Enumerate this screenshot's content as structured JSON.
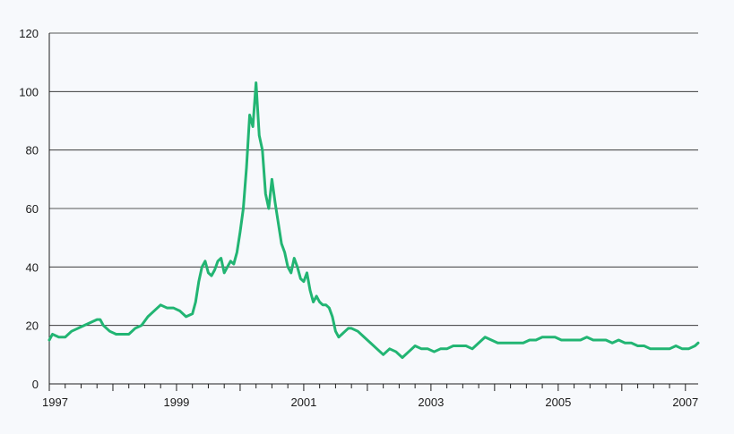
{
  "chart_data": {
    "type": "line",
    "title": "",
    "xlabel": "",
    "ylabel": "",
    "xlim": [
      1996.75,
      2006.95
    ],
    "ylim": [
      0,
      120
    ],
    "grid": "horizontal",
    "y_ticks": [
      0,
      20,
      40,
      60,
      80,
      100,
      120
    ],
    "y_tick_labels": [
      "0",
      "20",
      "40",
      "60",
      "80",
      "100",
      "120"
    ],
    "x_ticks": [
      1996.75,
      1998.75,
      2000.75,
      2002.75,
      2004.75,
      2006.75
    ],
    "x_tick_labels": [
      "1997",
      "1999",
      "2001",
      "2003",
      "2005",
      "2007"
    ],
    "series": [
      {
        "color": "#22b573",
        "x": [
          1996.75,
          1996.8,
          1996.9,
          1997.0,
          1997.1,
          1997.2,
          1997.3,
          1997.4,
          1997.5,
          1997.55,
          1997.6,
          1997.7,
          1997.8,
          1997.9,
          1998.0,
          1998.1,
          1998.2,
          1998.3,
          1998.4,
          1998.5,
          1998.6,
          1998.7,
          1998.8,
          1998.9,
          1999.0,
          1999.05,
          1999.1,
          1999.15,
          1999.2,
          1999.25,
          1999.3,
          1999.35,
          1999.4,
          1999.45,
          1999.5,
          1999.55,
          1999.6,
          1999.65,
          1999.7,
          1999.75,
          1999.8,
          1999.85,
          1999.9,
          1999.95,
          2000.0,
          2000.05,
          2000.1,
          2000.15,
          2000.2,
          2000.25,
          2000.3,
          2000.35,
          2000.4,
          2000.45,
          2000.5,
          2000.55,
          2000.6,
          2000.65,
          2000.7,
          2000.75,
          2000.8,
          2000.85,
          2000.9,
          2000.95,
          2001.0,
          2001.05,
          2001.1,
          2001.15,
          2001.2,
          2001.25,
          2001.3,
          2001.35,
          2001.4,
          2001.45,
          2001.5,
          2001.6,
          2001.7,
          2001.8,
          2001.9,
          2002.0,
          2002.1,
          2002.2,
          2002.3,
          2002.4,
          2002.5,
          2002.6,
          2002.7,
          2002.8,
          2002.9,
          2003.0,
          2003.1,
          2003.2,
          2003.3,
          2003.4,
          2003.5,
          2003.6,
          2003.7,
          2003.8,
          2003.9,
          2004.0,
          2004.1,
          2004.2,
          2004.3,
          2004.4,
          2004.5,
          2004.6,
          2004.7,
          2004.8,
          2004.9,
          2005.0,
          2005.1,
          2005.2,
          2005.3,
          2005.4,
          2005.5,
          2005.6,
          2005.7,
          2005.8,
          2005.9,
          2006.0,
          2006.1,
          2006.2,
          2006.3,
          2006.4,
          2006.5,
          2006.6,
          2006.7,
          2006.8,
          2006.9,
          2006.95
        ],
        "y": [
          15,
          17,
          16,
          16,
          18,
          19,
          20,
          21,
          22,
          22,
          20,
          18,
          17,
          17,
          17,
          19,
          20,
          23,
          25,
          27,
          26,
          26,
          25,
          23,
          24,
          28,
          35,
          40,
          42,
          38,
          37,
          39,
          42,
          43,
          38,
          40,
          42,
          41,
          45,
          52,
          60,
          74,
          92,
          88,
          103,
          85,
          80,
          65,
          60,
          70,
          62,
          55,
          48,
          45,
          40,
          38,
          43,
          40,
          36,
          35,
          38,
          32,
          28,
          30,
          28,
          27,
          27,
          26,
          23,
          18,
          16,
          17,
          18,
          19,
          19,
          18,
          16,
          14,
          12,
          10,
          12,
          11,
          9,
          11,
          13,
          12,
          12,
          11,
          12,
          12,
          13,
          13,
          13,
          12,
          14,
          16,
          15,
          14,
          14,
          14,
          14,
          14,
          15,
          15,
          16,
          16,
          16,
          15,
          15,
          15,
          15,
          16,
          15,
          15,
          15,
          14,
          15,
          14,
          14,
          13,
          13,
          12,
          12,
          12,
          12,
          13,
          12,
          12,
          13,
          14
        ]
      }
    ]
  }
}
